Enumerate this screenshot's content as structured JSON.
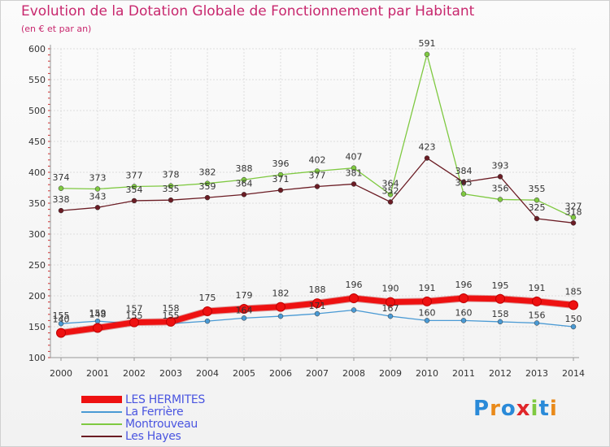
{
  "chart_data": {
    "type": "line",
    "title": "Evolution de la Dotation Globale de Fonctionnement par Habitant",
    "subtitle": "(en € et par an)",
    "xlabel": "",
    "ylabel": "",
    "ylim": [
      100,
      600
    ],
    "yticks": [
      100,
      150,
      200,
      250,
      300,
      350,
      400,
      450,
      500,
      550,
      600
    ],
    "grid": true,
    "legend_position": "bottom-left",
    "x": [
      2000,
      2001,
      2002,
      2003,
      2004,
      2005,
      2006,
      2007,
      2008,
      2009,
      2010,
      2011,
      2012,
      2013,
      2014
    ],
    "series": [
      {
        "name": "La Ferrière",
        "color": "#4a9ad4",
        "weight": "thin",
        "values": [
          155,
          159,
          155,
          155,
          159,
          164,
          167,
          171,
          177,
          167,
          160,
          160,
          158,
          156,
          150
        ],
        "labels": [
          "155",
          "159",
          "155",
          "155",
          "",
          "164",
          "",
          "171",
          "",
          "167",
          "160",
          "160",
          "158",
          "156",
          "150"
        ]
      },
      {
        "name": "Montrouveau",
        "color": "#7fc941",
        "weight": "thin",
        "values": [
          374,
          373,
          377,
          378,
          382,
          388,
          396,
          402,
          407,
          364,
          591,
          365,
          356,
          355,
          327
        ],
        "labels": [
          "374",
          "373",
          "377",
          "378",
          "382",
          "388",
          "396",
          "402",
          "407",
          "364",
          "591",
          "365",
          "356",
          "355",
          "327"
        ]
      },
      {
        "name": "Les Hayes",
        "color": "#6b1c24",
        "weight": "thin",
        "values": [
          338,
          343,
          354,
          355,
          359,
          364,
          371,
          377,
          381,
          352,
          423,
          384,
          393,
          325,
          318
        ],
        "labels": [
          "338",
          "343",
          "354",
          "355",
          "359",
          "364",
          "371",
          "377",
          "381",
          "352",
          "423",
          "384",
          "393",
          "325",
          "318"
        ]
      },
      {
        "name": "LES HERMITES",
        "color": "#ee1111",
        "weight": "thick",
        "values": [
          140,
          148,
          157,
          158,
          175,
          179,
          182,
          188,
          196,
          190,
          191,
          196,
          195,
          191,
          185
        ],
        "labels": [
          "140",
          "148",
          "157",
          "158",
          "175",
          "179",
          "182",
          "188",
          "196",
          "190",
          "191",
          "196",
          "195",
          "191",
          "185"
        ]
      }
    ],
    "legend_order": [
      "LES HERMITES",
      "La Ferrière",
      "Montrouveau",
      "Les Hayes"
    ]
  },
  "logo": {
    "letters": [
      "P",
      "r",
      "o",
      "x",
      "i",
      "t",
      "i"
    ],
    "colors": [
      "#2a8ad8",
      "#e98a1a",
      "#2a8ad8",
      "#e0262a",
      "#7fc941",
      "#2a8ad8",
      "#e98a1a"
    ]
  }
}
